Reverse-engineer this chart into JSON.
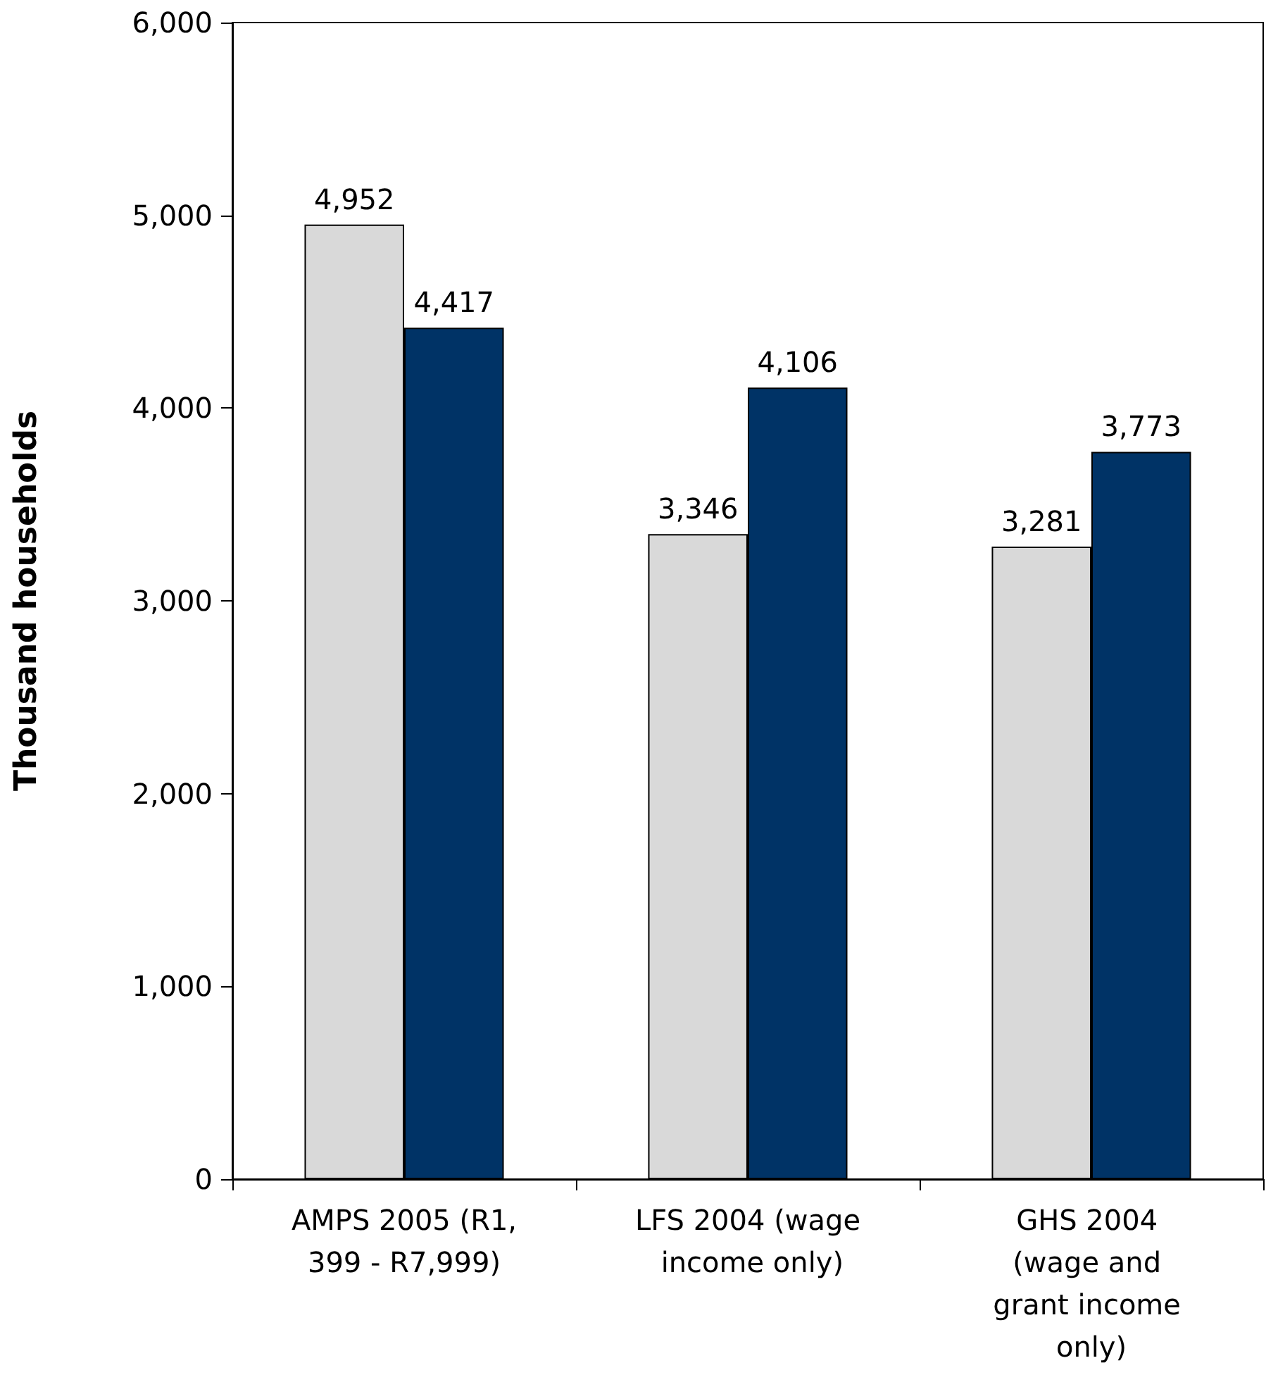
{
  "chart_data": {
    "type": "bar",
    "ylabel": "Thousand households",
    "categories": [
      "AMPS 2005 (R1,399 - R7,999)",
      "LFS 2004 (wage income only)",
      "GHS 2004 (wage and grant income only)"
    ],
    "series": [
      {
        "color": "#d9d9d9",
        "values": [
          4952,
          3346,
          3281
        ],
        "value_labels": [
          "4,952",
          "3,346",
          "3,281"
        ]
      },
      {
        "color": "#003366",
        "values": [
          4417,
          4106,
          3773
        ],
        "value_labels": [
          "4,417",
          "4,106",
          "3,773"
        ]
      }
    ],
    "ylim": [
      0,
      6000
    ],
    "yticks": [
      0,
      {
        "value": 1000,
        "label": "1,000"
      },
      {
        "value": 2000,
        "label": "2,000"
      },
      {
        "value": 3000,
        "label": "3,000"
      },
      {
        "value": 4000,
        "label": "4,000"
      },
      {
        "value": 5000,
        "label": "5,000"
      },
      {
        "value": 6000,
        "label": "6,000"
      }
    ]
  }
}
